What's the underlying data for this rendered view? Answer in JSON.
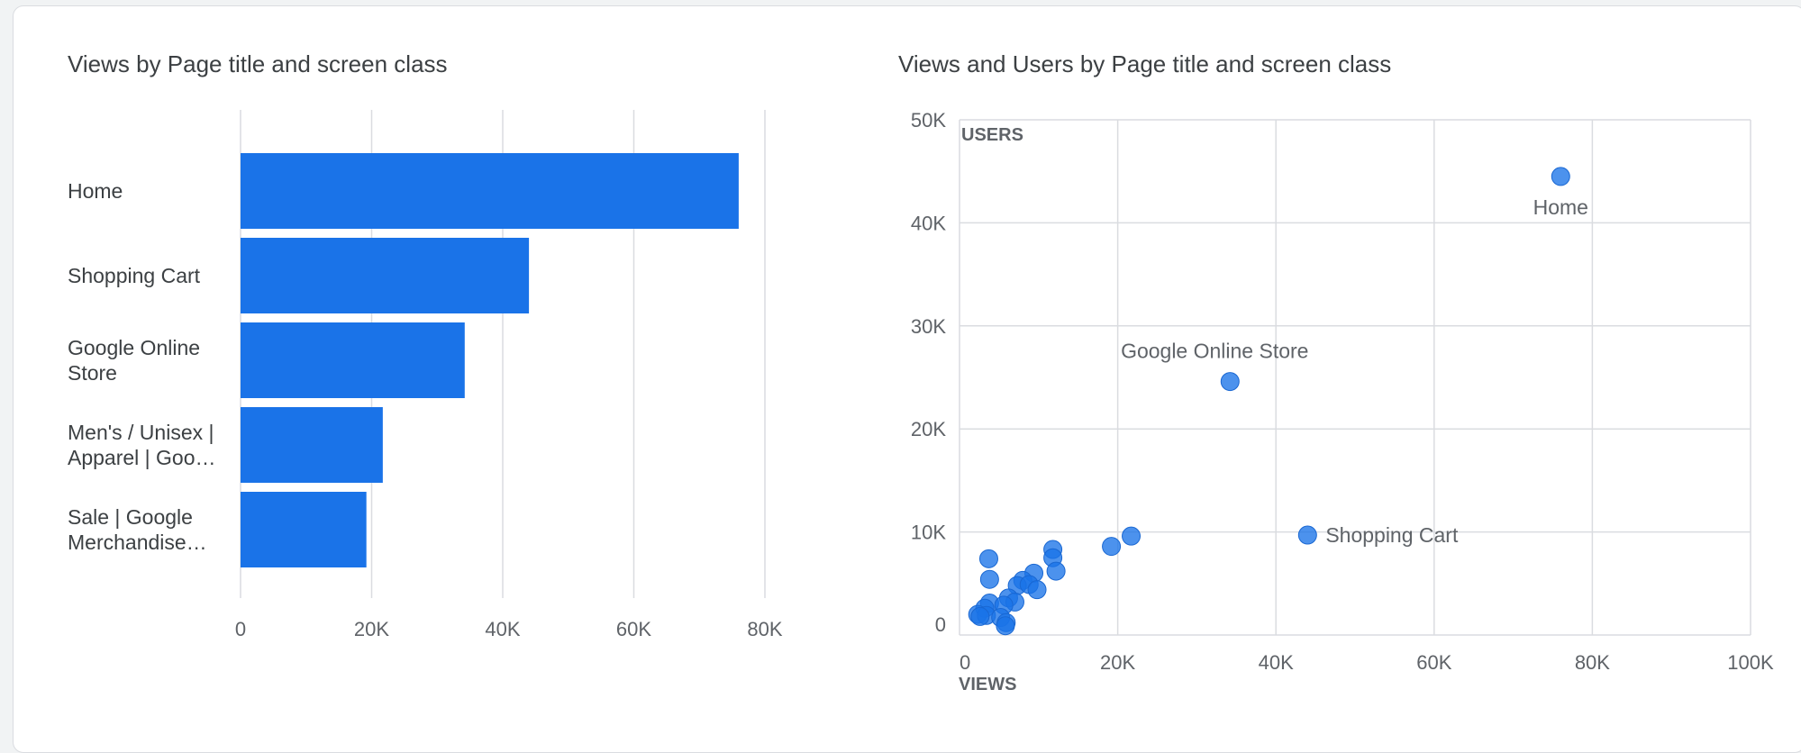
{
  "chart_data": [
    {
      "type": "bar",
      "orientation": "horizontal",
      "title": "Views by Page title and screen class",
      "categories": [
        [
          "Home"
        ],
        [
          "Shopping Cart"
        ],
        [
          "Google Online",
          "Store"
        ],
        [
          "Men's / Unisex |",
          "Apparel | Goo…"
        ],
        [
          "Sale | Google",
          "Merchandise…"
        ]
      ],
      "values": [
        76000,
        44000,
        34200,
        21700,
        19200
      ],
      "xlim": [
        0,
        80000
      ],
      "x_ticks": [
        0,
        20000,
        40000,
        60000,
        80000
      ],
      "x_tick_labels": [
        "0",
        "20K",
        "40K",
        "60K",
        "80K"
      ],
      "grid": true,
      "colors": {
        "bar": "#1a73e8",
        "grid": "#dadce0"
      }
    },
    {
      "type": "scatter",
      "title": "Views and Users by Page title and screen class",
      "xlabel": "VIEWS",
      "ylabel": "USERS",
      "xlim": [
        0,
        100000
      ],
      "ylim": [
        0,
        50000
      ],
      "x_ticks": [
        0,
        20000,
        40000,
        60000,
        80000,
        100000
      ],
      "x_tick_labels": [
        "0",
        "20K",
        "40K",
        "60K",
        "80K",
        "100K"
      ],
      "y_ticks": [
        0,
        10000,
        20000,
        30000,
        40000,
        50000
      ],
      "y_tick_labels": [
        "0",
        "10K",
        "20K",
        "30K",
        "40K",
        "50K"
      ],
      "grid": true,
      "colors": {
        "point": "#1a73e8",
        "grid": "#dadce0"
      },
      "points": [
        {
          "x": 76000,
          "y": 44500,
          "label": "Home"
        },
        {
          "x": 34200,
          "y": 24600,
          "label": "Google Online Store"
        },
        {
          "x": 44000,
          "y": 9700,
          "label": "Shopping Cart"
        },
        {
          "x": 21700,
          "y": 9600,
          "label": ""
        },
        {
          "x": 19200,
          "y": 8600,
          "label": ""
        },
        {
          "x": 11800,
          "y": 8300,
          "label": ""
        },
        {
          "x": 11800,
          "y": 7500,
          "label": ""
        },
        {
          "x": 3700,
          "y": 7400,
          "label": ""
        },
        {
          "x": 12200,
          "y": 6200,
          "label": ""
        },
        {
          "x": 9400,
          "y": 6000,
          "label": ""
        },
        {
          "x": 3800,
          "y": 5400,
          "label": ""
        },
        {
          "x": 8000,
          "y": 5300,
          "label": ""
        },
        {
          "x": 7300,
          "y": 4800,
          "label": ""
        },
        {
          "x": 8800,
          "y": 4900,
          "label": ""
        },
        {
          "x": 9800,
          "y": 4400,
          "label": ""
        },
        {
          "x": 6200,
          "y": 3600,
          "label": ""
        },
        {
          "x": 7000,
          "y": 3200,
          "label": ""
        },
        {
          "x": 3800,
          "y": 3100,
          "label": ""
        },
        {
          "x": 5600,
          "y": 2900,
          "label": ""
        },
        {
          "x": 3200,
          "y": 2600,
          "label": ""
        },
        {
          "x": 2300,
          "y": 2000,
          "label": ""
        },
        {
          "x": 3400,
          "y": 1900,
          "label": ""
        },
        {
          "x": 2600,
          "y": 1800,
          "label": ""
        },
        {
          "x": 5200,
          "y": 1700,
          "label": ""
        },
        {
          "x": 5900,
          "y": 1200,
          "label": ""
        },
        {
          "x": 5800,
          "y": 900,
          "label": ""
        }
      ]
    }
  ]
}
